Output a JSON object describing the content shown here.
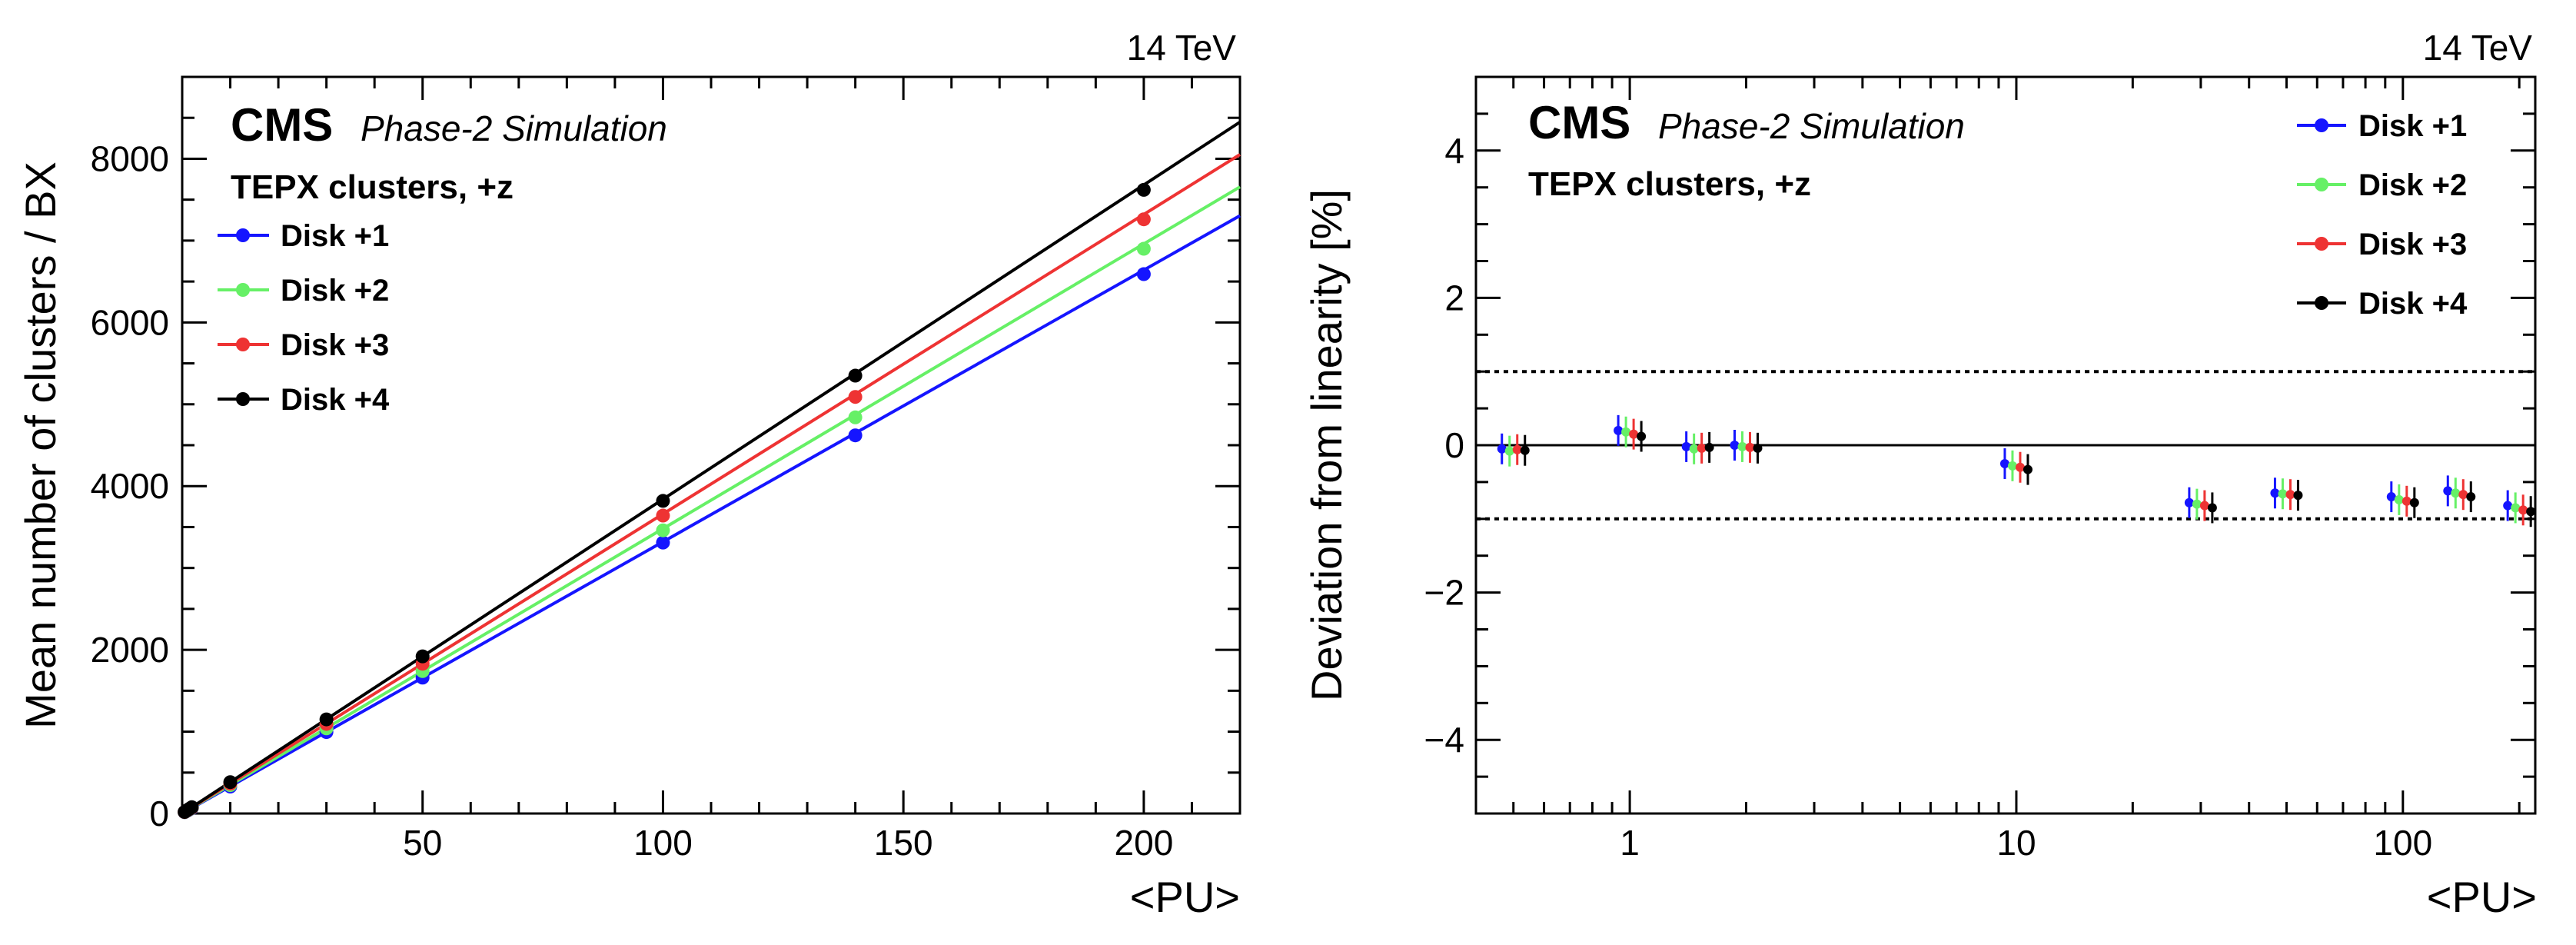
{
  "colors": {
    "disk1": "#1515ff",
    "disk2": "#66f066",
    "disk3": "#ee3333",
    "disk4": "#000000"
  },
  "chart_data": [
    {
      "type": "line",
      "energy": "14 TeV",
      "experiment": "CMS",
      "status": "Phase-2 Simulation",
      "selection": "TEPX clusters, +z",
      "xlabel": "<PU>",
      "ylabel": "Mean number of clusters / BX",
      "xlim": [
        0,
        220
      ],
      "ylim": [
        0,
        9000
      ],
      "xticks": [
        50,
        100,
        150,
        200
      ],
      "yticks": [
        0,
        2000,
        4000,
        6000,
        8000
      ],
      "legend_position": "top-left",
      "x": [
        0.5,
        1,
        1.5,
        2,
        10,
        30,
        50,
        100,
        140,
        200
      ],
      "series": [
        {
          "name": "Disk +1",
          "color_key": "disk1",
          "slope": 33.2,
          "values": [
            16,
            33,
            49,
            66,
            330,
            995,
            1660,
            3310,
            4620,
            6590
          ]
        },
        {
          "name": "Disk +2",
          "color_key": "disk2",
          "slope": 34.8,
          "values": [
            17,
            35,
            52,
            70,
            347,
            1040,
            1740,
            3460,
            4840,
            6900
          ]
        },
        {
          "name": "Disk +3",
          "color_key": "disk3",
          "slope": 36.6,
          "values": [
            18,
            37,
            55,
            73,
            365,
            1095,
            1830,
            3640,
            5090,
            7260
          ]
        },
        {
          "name": "Disk +4",
          "color_key": "disk4",
          "slope": 38.4,
          "values": [
            19,
            39,
            58,
            77,
            383,
            1150,
            1920,
            3820,
            5350,
            7620
          ]
        }
      ]
    },
    {
      "type": "scatter",
      "energy": "14 TeV",
      "experiment": "CMS",
      "status": "Phase-2 Simulation",
      "selection": "TEPX clusters, +z",
      "xlabel": "<PU>",
      "ylabel": "Deviation from linearity [%]",
      "xscale": "log",
      "xlim": [
        0.4,
        220
      ],
      "ylim": [
        -5,
        5
      ],
      "xticks": [
        1,
        10,
        100
      ],
      "yticks": [
        -4,
        -2,
        0,
        2,
        4
      ],
      "reference_lines": [
        1,
        -1
      ],
      "legend_position": "top-right",
      "x": [
        0.5,
        1,
        1.5,
        2,
        10,
        30,
        50,
        100,
        140,
        200
      ],
      "series": [
        {
          "name": "Disk +1",
          "color_key": "disk1",
          "values": [
            -0.05,
            0.2,
            -0.02,
            0.0,
            -0.25,
            -0.78,
            -0.65,
            -0.7,
            -0.62,
            -0.82
          ]
        },
        {
          "name": "Disk +2",
          "color_key": "disk2",
          "values": [
            -0.08,
            0.18,
            -0.05,
            -0.02,
            -0.28,
            -0.8,
            -0.66,
            -0.74,
            -0.65,
            -0.85
          ]
        },
        {
          "name": "Disk +3",
          "color_key": "disk3",
          "values": [
            -0.06,
            0.15,
            -0.04,
            -0.03,
            -0.3,
            -0.82,
            -0.67,
            -0.76,
            -0.67,
            -0.88
          ]
        },
        {
          "name": "Disk +4",
          "color_key": "disk4",
          "values": [
            -0.07,
            0.12,
            -0.03,
            -0.04,
            -0.33,
            -0.85,
            -0.68,
            -0.78,
            -0.7,
            -0.9
          ]
        }
      ]
    }
  ]
}
